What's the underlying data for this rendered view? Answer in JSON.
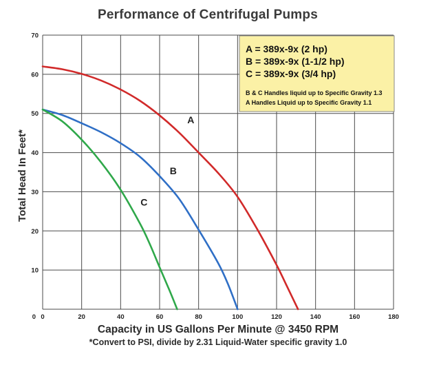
{
  "chart_data": {
    "type": "line",
    "title": "Performance of Centrifugal Pumps",
    "xlabel": "Capacity in US Gallons Per Minute @ 3450 RPM",
    "ylabel": "Total Head In Feet*",
    "footnote": "*Convert to PSI, divide by 2.31 Liquid-Water specific gravity 1.0",
    "xlim": [
      0,
      180
    ],
    "ylim": [
      0,
      70
    ],
    "xticks": [
      0,
      20,
      40,
      60,
      80,
      100,
      120,
      140,
      160,
      180
    ],
    "yticks": [
      0,
      10,
      20,
      30,
      40,
      50,
      60,
      70
    ],
    "grid": true,
    "series": [
      {
        "name": "A",
        "color": "#d12a2a",
        "x": [
          0,
          10,
          20,
          30,
          40,
          50,
          60,
          70,
          80,
          90,
          100,
          110,
          120,
          125,
          131
        ],
        "y": [
          62,
          61.3,
          60.1,
          58.4,
          56.1,
          53.2,
          49.5,
          45.1,
          40.0,
          34.8,
          28.7,
          20.5,
          11.3,
          6.2,
          0
        ]
      },
      {
        "name": "B",
        "color": "#2f6fc6",
        "x": [
          0,
          10,
          20,
          30,
          40,
          50,
          60,
          70,
          80,
          90,
          95,
          100
        ],
        "y": [
          51,
          49.6,
          47.5,
          45.2,
          42.4,
          38.9,
          34.0,
          28.2,
          20.3,
          11.8,
          6.5,
          0
        ]
      },
      {
        "name": "C",
        "color": "#2fa84a",
        "x": [
          0,
          10,
          20,
          30,
          40,
          50,
          55,
          60,
          65,
          69
        ],
        "y": [
          51,
          48,
          43.3,
          37.5,
          30.5,
          21.8,
          16.6,
          10.7,
          4.9,
          0
        ]
      }
    ],
    "curve_labels": [
      {
        "text": "A",
        "x": 76,
        "y": 47.5
      },
      {
        "text": "B",
        "x": 67,
        "y": 34.5
      },
      {
        "text": "C",
        "x": 52,
        "y": 26.5
      }
    ],
    "legend": {
      "position": "top-right",
      "background": "#fbf1a6",
      "lines": [
        "A = 389x-9x (2 hp)",
        "B = 389x-9x (1-1/2 hp)",
        "C = 389x-9x (3/4 hp)"
      ],
      "notes": [
        "B & C Handles liquid up to Specific Gravity 1.3",
        "A Handles Liquid up to Specific Gravity 1.1"
      ]
    }
  }
}
